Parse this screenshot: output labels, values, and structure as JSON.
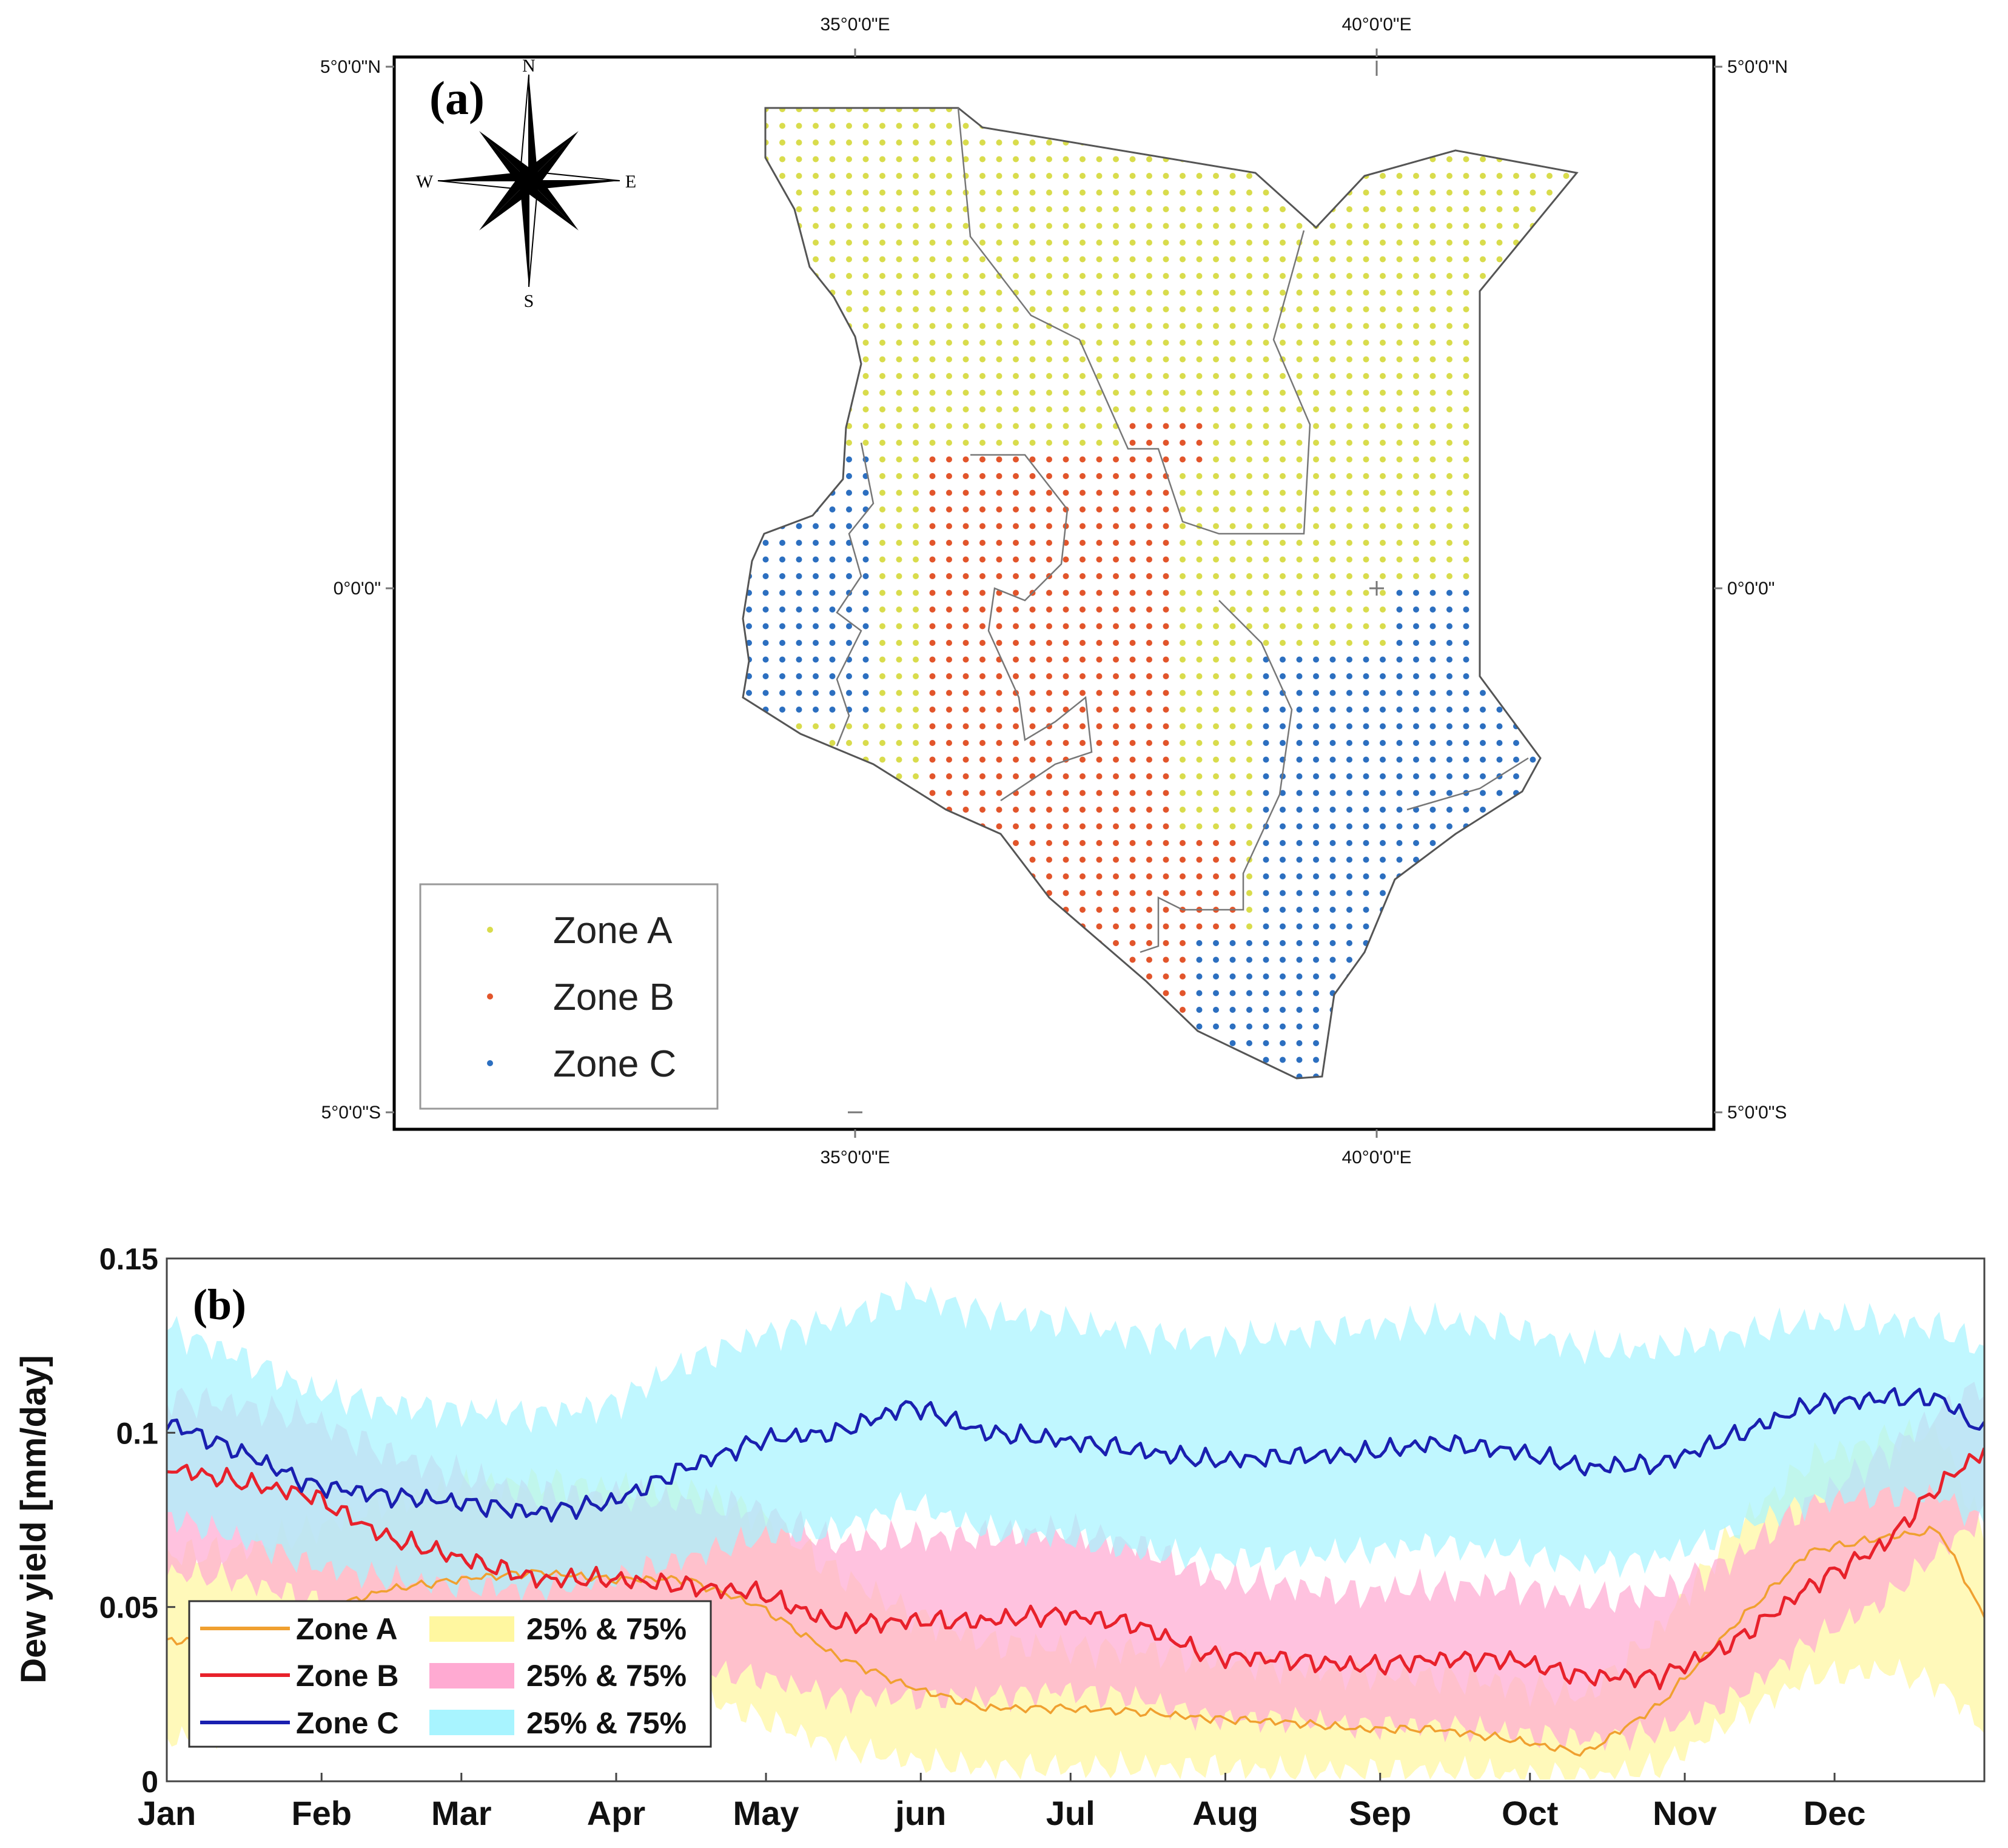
{
  "chart_data": [
    {
      "type": "map",
      "panel_label": "(a)",
      "x_ticks": [
        "35°0'0\"E",
        "40°0'0\"E"
      ],
      "y_ticks": [
        "5°0'0\"N",
        "0°0'0\"",
        "5°0'0\"S"
      ],
      "compass": {
        "n": "N",
        "s": "S",
        "e": "E",
        "w": "W"
      },
      "legend": [
        {
          "label": "Zone A",
          "color": "#d9dc4c"
        },
        {
          "label": "Zone B",
          "color": "#e2552b"
        },
        {
          "label": "Zone C",
          "color": "#2c6fc0"
        }
      ]
    },
    {
      "type": "line",
      "panel_label": "(b)",
      "ylabel": "Dew yield [mm/day]",
      "ylim": [
        0,
        0.15
      ],
      "yticks": [
        "0",
        "0.05",
        "0.1",
        "0.15"
      ],
      "months": [
        "Jan",
        "Feb",
        "Mar",
        "Apr",
        "May",
        "jun",
        "Jul",
        "Aug",
        "Sep",
        "Oct",
        "Nov",
        "Dec"
      ],
      "x_days": [
        1,
        15,
        30,
        45,
        60,
        75,
        90,
        105,
        120,
        135,
        150,
        165,
        180,
        195,
        210,
        225,
        240,
        255,
        270,
        285,
        300,
        315,
        330,
        345,
        356,
        365
      ],
      "series": [
        {
          "name": "Zone A",
          "color": "#f0a030",
          "band_label": "25% & 75%",
          "band_color": "#fff7a0",
          "values": [
            0.04,
            0.042,
            0.048,
            0.055,
            0.058,
            0.06,
            0.058,
            0.058,
            0.05,
            0.036,
            0.027,
            0.021,
            0.021,
            0.02,
            0.018,
            0.017,
            0.015,
            0.015,
            0.012,
            0.008,
            0.022,
            0.045,
            0.066,
            0.07,
            0.072,
            0.047
          ],
          "q25": [
            0.012,
            0.014,
            0.018,
            0.022,
            0.028,
            0.03,
            0.028,
            0.026,
            0.018,
            0.01,
            0.006,
            0.004,
            0.004,
            0.004,
            0.004,
            0.003,
            0.003,
            0.003,
            0.002,
            0.001,
            0.004,
            0.018,
            0.03,
            0.032,
            0.028,
            0.015
          ],
          "q75": [
            0.065,
            0.066,
            0.072,
            0.08,
            0.084,
            0.086,
            0.084,
            0.084,
            0.076,
            0.06,
            0.048,
            0.04,
            0.038,
            0.038,
            0.035,
            0.033,
            0.031,
            0.03,
            0.028,
            0.024,
            0.044,
            0.072,
            0.092,
            0.098,
            0.1,
            0.07
          ]
        },
        {
          "name": "Zone B",
          "color": "#e8212b",
          "band_label": "25% & 75%",
          "band_color": "#ffaad2",
          "values": [
            0.09,
            0.086,
            0.082,
            0.07,
            0.064,
            0.058,
            0.058,
            0.056,
            0.054,
            0.045,
            0.046,
            0.046,
            0.048,
            0.045,
            0.036,
            0.035,
            0.033,
            0.035,
            0.035,
            0.03,
            0.03,
            0.04,
            0.056,
            0.068,
            0.085,
            0.095
          ],
          "q25": [
            0.06,
            0.058,
            0.052,
            0.044,
            0.038,
            0.034,
            0.032,
            0.032,
            0.03,
            0.024,
            0.024,
            0.024,
            0.026,
            0.024,
            0.018,
            0.018,
            0.016,
            0.016,
            0.014,
            0.012,
            0.014,
            0.024,
            0.04,
            0.052,
            0.066,
            0.076
          ],
          "q75": [
            0.11,
            0.108,
            0.104,
            0.094,
            0.088,
            0.082,
            0.082,
            0.08,
            0.078,
            0.068,
            0.07,
            0.07,
            0.072,
            0.068,
            0.058,
            0.056,
            0.054,
            0.056,
            0.056,
            0.052,
            0.054,
            0.064,
            0.08,
            0.094,
            0.106,
            0.114
          ]
        },
        {
          "name": "Zone C",
          "color": "#1a1fb0",
          "band_label": "25% & 75%",
          "band_color": "#a8f4ff",
          "values": [
            0.103,
            0.095,
            0.085,
            0.082,
            0.08,
            0.077,
            0.08,
            0.09,
            0.098,
            0.1,
            0.108,
            0.1,
            0.098,
            0.095,
            0.092,
            0.093,
            0.094,
            0.097,
            0.095,
            0.09,
            0.091,
            0.099,
            0.108,
            0.11,
            0.11,
            0.1
          ],
          "q25": [
            0.076,
            0.07,
            0.062,
            0.058,
            0.056,
            0.055,
            0.058,
            0.064,
            0.07,
            0.072,
            0.08,
            0.072,
            0.07,
            0.066,
            0.064,
            0.064,
            0.066,
            0.068,
            0.066,
            0.062,
            0.064,
            0.072,
            0.08,
            0.082,
            0.082,
            0.074
          ],
          "q75": [
            0.13,
            0.122,
            0.112,
            0.108,
            0.106,
            0.105,
            0.108,
            0.12,
            0.128,
            0.132,
            0.14,
            0.134,
            0.132,
            0.128,
            0.126,
            0.128,
            0.13,
            0.132,
            0.13,
            0.124,
            0.124,
            0.128,
            0.132,
            0.132,
            0.13,
            0.124
          ]
        }
      ]
    }
  ]
}
